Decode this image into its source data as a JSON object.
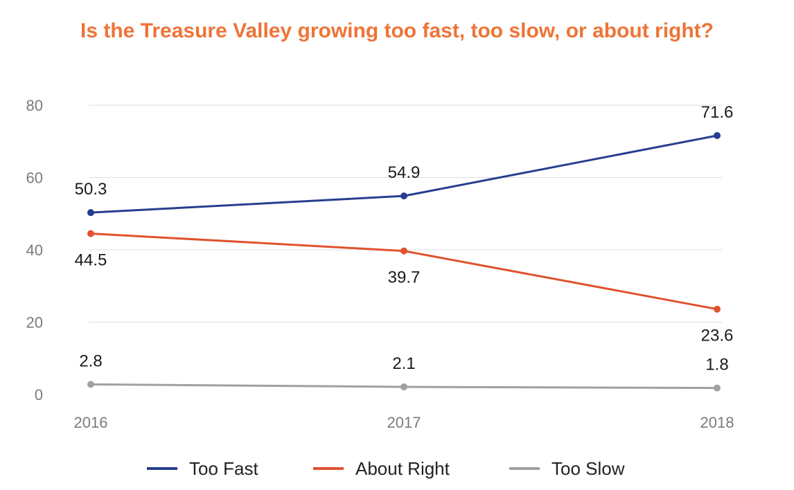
{
  "chart_data": {
    "type": "line",
    "title": "Is the Treasure Valley growing too fast, too slow, or about right?",
    "categories": [
      "2016",
      "2017",
      "2018"
    ],
    "y_ticks": [
      "0",
      "20",
      "40",
      "60",
      "80"
    ],
    "ylim": [
      0,
      80
    ],
    "grid": true,
    "legend_position": "bottom",
    "series": [
      {
        "name": "Too Fast",
        "values": [
          50.3,
          54.9,
          71.6
        ],
        "labels": [
          "50.3",
          "54.9",
          "71.6"
        ],
        "color": "#263d8f",
        "label_placement": "above"
      },
      {
        "name": "About Right",
        "values": [
          44.5,
          39.7,
          23.6
        ],
        "labels": [
          "44.5",
          "39.7",
          "23.6"
        ],
        "color": "#e0512e",
        "label_placement": "below"
      },
      {
        "name": "Too Slow",
        "values": [
          2.8,
          2.1,
          1.8
        ],
        "labels": [
          "2.8",
          "2.1",
          "1.8"
        ],
        "color": "#a0a0a0",
        "label_placement": "above"
      }
    ]
  },
  "colors": {
    "title": "#ee7437",
    "grid": "#dcdcdc"
  }
}
